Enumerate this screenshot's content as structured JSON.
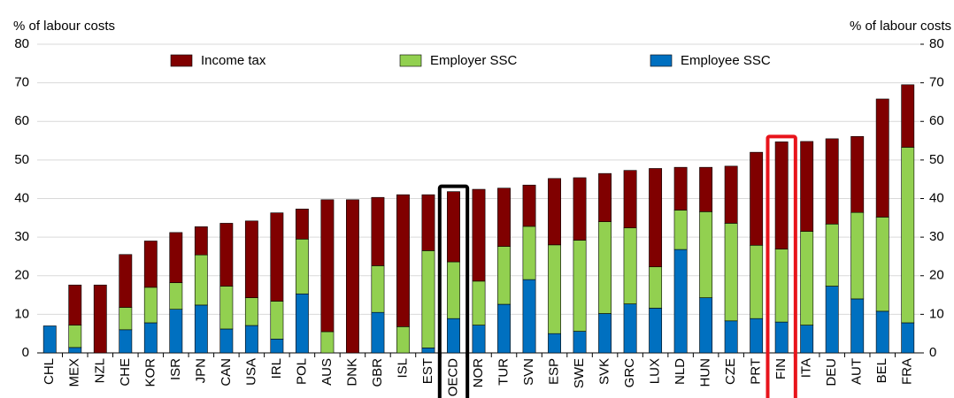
{
  "chart_data": {
    "type": "stacked_bar",
    "y_label": "% of labour costs",
    "y2_label": "% of labour costs",
    "categories": [
      "CHL",
      "MEX",
      "NZL",
      "CHE",
      "KOR",
      "ISR",
      "JPN",
      "CAN",
      "USA",
      "IRL",
      "POL",
      "AUS",
      "DNK",
      "GBR",
      "ISL",
      "EST",
      "OECD",
      "NOR",
      "TUR",
      "SVN",
      "ESP",
      "SWE",
      "SVK",
      "GRC",
      "LUX",
      "NLD",
      "HUN",
      "CZE",
      "PRT",
      "FIN",
      "ITA",
      "DEU",
      "AUT",
      "BEL",
      "FRA"
    ],
    "series": [
      {
        "name": "Income tax",
        "color": "#800000",
        "values": [
          0,
          10.4,
          17.6,
          13.7,
          12,
          13,
          7.3,
          16.3,
          19.9,
          22.9,
          7.8,
          34.2,
          39.7,
          17.7,
          34.2,
          14.5,
          18.2,
          23.8,
          15.1,
          10.7,
          17.2,
          16.2,
          12.5,
          14.9,
          25.5,
          11.1,
          11.5,
          14.8,
          24.1,
          27.8,
          23.3,
          22.1,
          19.7,
          30.6,
          16.2
        ]
      },
      {
        "name": "Employer SSC",
        "color": "#92d050",
        "values": [
          0,
          5.8,
          0,
          5.8,
          9.2,
          6.9,
          13,
          11.1,
          7.2,
          9.8,
          14.2,
          5.5,
          0,
          12.1,
          6.8,
          25.2,
          14.7,
          11.4,
          15,
          13.8,
          23,
          23.6,
          23.8,
          19.7,
          10.7,
          10.2,
          22.3,
          25.3,
          19,
          18.9,
          24.3,
          16.1,
          22.4,
          24.4,
          45.5
        ]
      },
      {
        "name": "Employee SSC",
        "color": "#0070c0",
        "values": [
          7,
          1.4,
          0,
          6,
          7.8,
          11.3,
          12.4,
          6.2,
          7.1,
          3.6,
          15.3,
          0,
          0,
          10.5,
          0,
          1.3,
          8.9,
          7.2,
          12.6,
          19,
          5,
          5.6,
          10.2,
          12.7,
          11.6,
          26.8,
          14.3,
          8.3,
          8.9,
          8,
          7.2,
          17.3,
          14,
          10.8,
          7.8
        ]
      }
    ],
    "ylim": [
      0,
      80
    ],
    "yticks": [
      0,
      10,
      20,
      30,
      40,
      50,
      60,
      70,
      80
    ],
    "y2lim": [
      0,
      80
    ],
    "y2ticks": [
      0,
      10,
      20,
      30,
      40,
      50,
      60,
      70,
      80
    ],
    "grid": true,
    "legend": "top",
    "highlights": [
      {
        "category": "OECD",
        "color": "#000000"
      },
      {
        "category": "FIN",
        "color": "#e8141b"
      }
    ]
  }
}
